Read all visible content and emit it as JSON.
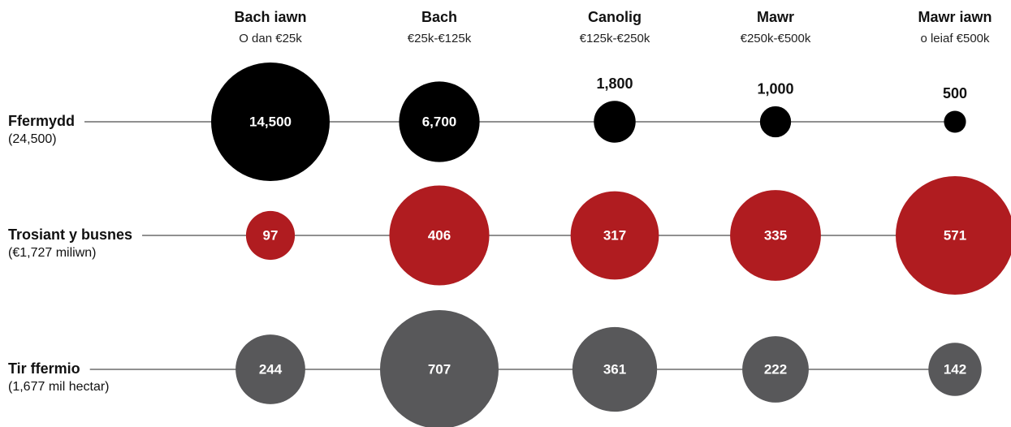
{
  "chart_data": {
    "type": "bubble_grid",
    "categories": [
      "Bach iawn",
      "Bach",
      "Canolig",
      "Mawr",
      "Mawr iawn"
    ],
    "category_subtitles": [
      "O dan €25k",
      "€25k-€125k",
      "€125k-€250k",
      "€250k-€500k",
      "o leiaf €500k"
    ],
    "series": [
      {
        "name": "Ffermydd",
        "total": "(24,500)",
        "color": "#000000",
        "values": [
          14500,
          6700,
          1800,
          1000,
          500
        ],
        "value_labels": [
          "14,500",
          "6,700",
          "1,800",
          "1,000",
          "500"
        ]
      },
      {
        "name": "Trosiant y busnes",
        "total": "(€1,727 miliwn)",
        "color": "#b01c20",
        "values": [
          97,
          406,
          317,
          335,
          571
        ]
      },
      {
        "name": "Tir ffermio",
        "total": "(1,677 mil hectar)",
        "color": "#58585a",
        "values": [
          244,
          707,
          361,
          222,
          142
        ]
      }
    ]
  }
}
